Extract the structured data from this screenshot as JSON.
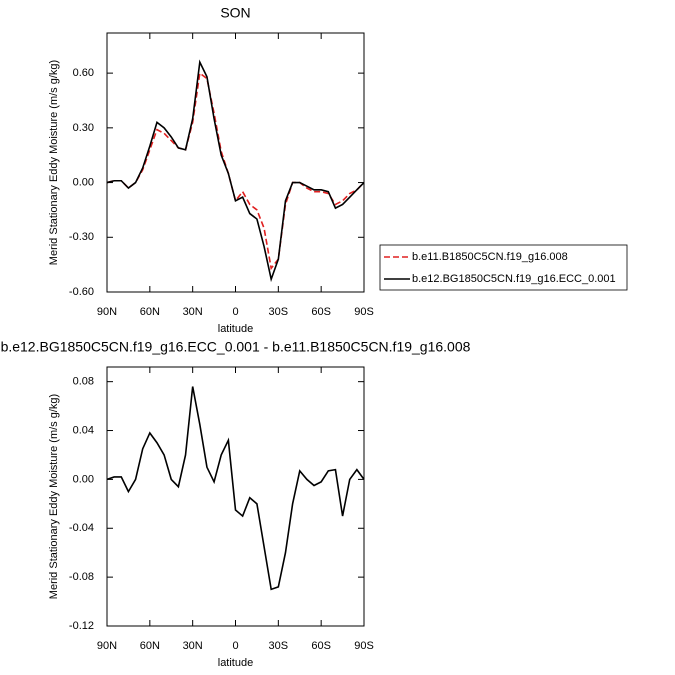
{
  "chart_data": [
    {
      "type": "line",
      "title": "SON",
      "x_label": "latitude",
      "y_label": "Merid Stationary Eddy Moisture (m/s g/kg)",
      "x": [
        90,
        85,
        80,
        75,
        70,
        65,
        60,
        55,
        50,
        45,
        40,
        35,
        30,
        25,
        20,
        15,
        10,
        5,
        0,
        -5,
        -10,
        -15,
        -20,
        -25,
        -30,
        -35,
        -40,
        -45,
        -50,
        -55,
        -60,
        -65,
        -70,
        -75,
        -80,
        -85,
        -90
      ],
      "series": [
        {
          "name": "b.e11.B1850C5CN.f19_g16.008",
          "color": "#e02020",
          "style": "dashed",
          "values": [
            0.0,
            0.01,
            0.01,
            -0.03,
            0.0,
            0.07,
            0.18,
            0.29,
            0.27,
            0.23,
            0.19,
            0.18,
            0.33,
            0.6,
            0.57,
            0.38,
            0.17,
            0.05,
            -0.1,
            -0.05,
            -0.12,
            -0.15,
            -0.25,
            -0.47,
            -0.42,
            -0.12,
            0.0,
            0.0,
            -0.03,
            -0.05,
            -0.05,
            -0.06,
            -0.12,
            -0.1,
            -0.06,
            -0.04,
            0.0
          ]
        },
        {
          "name": "b.e12.BG1850C5CN.f19_g16.ECC_0.001",
          "color": "#000000",
          "style": "solid",
          "values": [
            0.0,
            0.01,
            0.01,
            -0.03,
            0.0,
            0.08,
            0.2,
            0.33,
            0.3,
            0.25,
            0.19,
            0.18,
            0.35,
            0.66,
            0.58,
            0.35,
            0.15,
            0.05,
            -0.1,
            -0.08,
            -0.17,
            -0.2,
            -0.35,
            -0.53,
            -0.42,
            -0.1,
            0.0,
            0.0,
            -0.02,
            -0.04,
            -0.04,
            -0.05,
            -0.14,
            -0.12,
            -0.08,
            -0.04,
            0.0
          ]
        }
      ],
      "xlim": [
        90,
        -90
      ],
      "xticks": [
        {
          "value": 90,
          "label": "90N"
        },
        {
          "value": 60,
          "label": "60N"
        },
        {
          "value": 30,
          "label": "30N"
        },
        0,
        {
          "value": -30,
          "label": "30S"
        },
        {
          "value": -60,
          "label": "60S"
        },
        {
          "value": -90,
          "label": "90S"
        }
      ],
      "ylim": [
        -0.6,
        0.82
      ],
      "yticks": [
        {
          "value": -0.6,
          "label": "-0.60"
        },
        {
          "value": -0.3,
          "label": "-0.30"
        },
        {
          "value": 0,
          "label": "0.00"
        },
        {
          "value": 0.3,
          "label": "0.30"
        },
        {
          "value": 0.6,
          "label": "0.60"
        }
      ],
      "legend": "outside-right"
    },
    {
      "type": "line",
      "title": "b.e12.BG1850C5CN.f19_g16.ECC_0.001 - b.e11.B1850C5CN.f19_g16.008",
      "x_label": "latitude",
      "y_label": "Merid Stationary Eddy Moisture (m/s g/kg)",
      "x": [
        90,
        85,
        80,
        75,
        70,
        65,
        60,
        55,
        50,
        45,
        40,
        35,
        30,
        25,
        20,
        15,
        10,
        5,
        0,
        -5,
        -10,
        -15,
        -20,
        -25,
        -30,
        -35,
        -40,
        -45,
        -50,
        -55,
        -60,
        -65,
        -70,
        -75,
        -80,
        -85,
        -90
      ],
      "series": [
        {
          "color": "#000000",
          "style": "solid",
          "values": [
            0.0,
            0.002,
            0.002,
            -0.01,
            0.0,
            0.025,
            0.038,
            0.03,
            0.02,
            0.0,
            -0.006,
            0.02,
            0.076,
            0.045,
            0.01,
            -0.002,
            0.02,
            0.032,
            -0.025,
            -0.03,
            -0.015,
            -0.02,
            -0.055,
            -0.09,
            -0.088,
            -0.06,
            -0.02,
            0.007,
            0.0,
            -0.005,
            -0.002,
            0.007,
            0.008,
            -0.03,
            0.0,
            0.008,
            0.0
          ]
        }
      ],
      "xlim": [
        90,
        -90
      ],
      "xticks": [
        {
          "value": 90,
          "label": "90N"
        },
        {
          "value": 60,
          "label": "60N"
        },
        {
          "value": 30,
          "label": "30N"
        },
        0,
        {
          "value": -30,
          "label": "30S"
        },
        {
          "value": -60,
          "label": "60S"
        },
        {
          "value": -90,
          "label": "90S"
        }
      ],
      "ylim": [
        -0.12,
        0.092
      ],
      "yticks": [
        -0.12,
        -0.08,
        {
          "value": -0.04,
          "label": "-0.04"
        },
        {
          "value": 0,
          "label": "0.00"
        },
        0.04,
        0.08
      ]
    }
  ]
}
